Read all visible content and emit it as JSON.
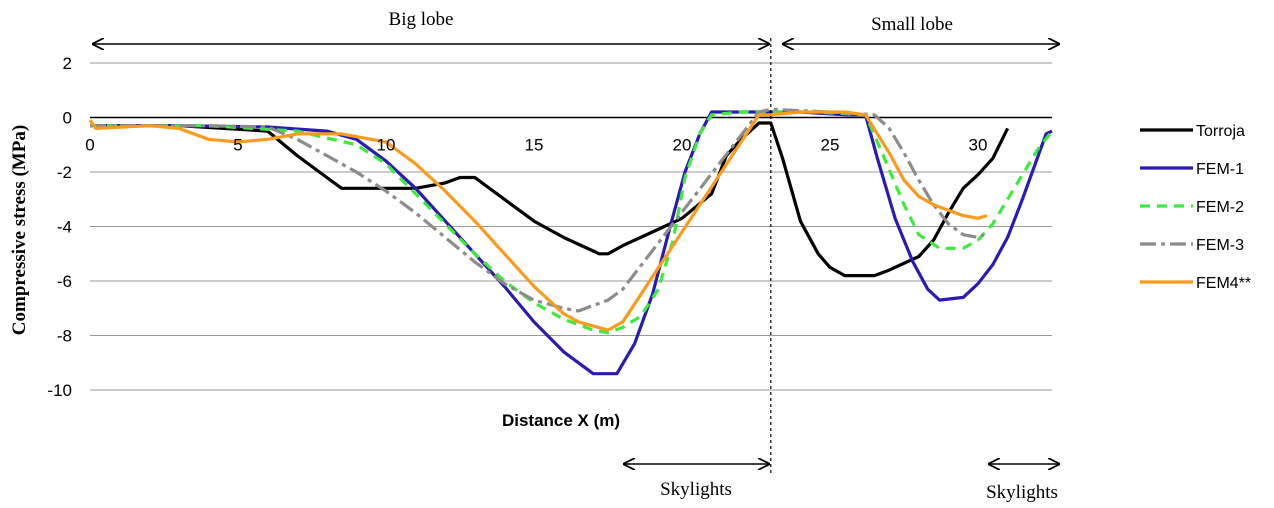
{
  "chart_data": {
    "type": "line",
    "xlabel": "Distance X (m)",
    "ylabel": "Compressive stress (MPa)",
    "xlim": [
      0,
      32.5
    ],
    "ylim": [
      -10,
      2
    ],
    "x_ticks": [
      0,
      5,
      10,
      15,
      20,
      25,
      30
    ],
    "y_ticks": [
      2,
      0,
      -2,
      -4,
      -6,
      -8,
      -10
    ],
    "grid": "horizontal",
    "legend_position": "right",
    "divider_x": 23,
    "annotations": {
      "big_lobe": "Big lobe",
      "small_lobe": "Small lobe",
      "skylights_1": "Skylights",
      "skylights_2": "Skylights"
    },
    "series": [
      {
        "name": "Torroja",
        "color": "#000000",
        "dash": "",
        "points": [
          [
            0,
            -0.3
          ],
          [
            3,
            -0.3
          ],
          [
            6,
            -0.5
          ],
          [
            7,
            -1.4
          ],
          [
            8,
            -2.2
          ],
          [
            8.5,
            -2.6
          ],
          [
            11,
            -2.6
          ],
          [
            12,
            -2.4
          ],
          [
            12.5,
            -2.2
          ],
          [
            13,
            -2.2
          ],
          [
            14,
            -3
          ],
          [
            15,
            -3.8
          ],
          [
            16,
            -4.4
          ],
          [
            17,
            -4.9
          ],
          [
            17.2,
            -5
          ],
          [
            17.5,
            -5
          ],
          [
            18,
            -4.7
          ],
          [
            19,
            -4.2
          ],
          [
            20,
            -3.7
          ],
          [
            21,
            -2.8
          ],
          [
            21.5,
            -1.4
          ],
          [
            22,
            -0.8
          ],
          [
            22.6,
            -0.2
          ],
          [
            23,
            -0.2
          ],
          [
            23.4,
            -1.5
          ],
          [
            24,
            -3.8
          ],
          [
            24.6,
            -5
          ],
          [
            25,
            -5.5
          ],
          [
            25.5,
            -5.8
          ],
          [
            26.5,
            -5.8
          ],
          [
            27,
            -5.6
          ],
          [
            28,
            -5.1
          ],
          [
            28.5,
            -4.5
          ],
          [
            29,
            -3.5
          ],
          [
            29.5,
            -2.6
          ],
          [
            30,
            -2.1
          ],
          [
            30.5,
            -1.5
          ],
          [
            31,
            -0.4
          ]
        ]
      },
      {
        "name": "FEM-1",
        "color": "#2b1ab4",
        "dash": "",
        "points": [
          [
            0,
            -0.3
          ],
          [
            3,
            -0.3
          ],
          [
            6,
            -0.35
          ],
          [
            8,
            -0.5
          ],
          [
            9,
            -0.8
          ],
          [
            10,
            -1.6
          ],
          [
            11,
            -2.6
          ],
          [
            12,
            -3.8
          ],
          [
            13,
            -5
          ],
          [
            14,
            -6.2
          ],
          [
            15,
            -7.5
          ],
          [
            16,
            -8.6
          ],
          [
            17,
            -9.4
          ],
          [
            17.8,
            -9.4
          ],
          [
            18.4,
            -8.3
          ],
          [
            19,
            -6.5
          ],
          [
            19.6,
            -4
          ],
          [
            20.1,
            -2
          ],
          [
            20.6,
            -0.6
          ],
          [
            21,
            0.2
          ],
          [
            23,
            0.2
          ],
          [
            24,
            0.2
          ],
          [
            25.5,
            0.1
          ],
          [
            26.2,
            0.1
          ],
          [
            26.6,
            -1.5
          ],
          [
            27.2,
            -3.7
          ],
          [
            27.8,
            -5.3
          ],
          [
            28.3,
            -6.3
          ],
          [
            28.7,
            -6.7
          ],
          [
            29.5,
            -6.6
          ],
          [
            30,
            -6.1
          ],
          [
            30.5,
            -5.4
          ],
          [
            31,
            -4.4
          ],
          [
            31.5,
            -3
          ],
          [
            32,
            -1.5
          ],
          [
            32.3,
            -0.6
          ],
          [
            32.5,
            -0.5
          ]
        ]
      },
      {
        "name": "FEM-2",
        "color": "#3ceb3c",
        "dash": "10,7",
        "points": [
          [
            0,
            -0.3
          ],
          [
            4,
            -0.3
          ],
          [
            7,
            -0.5
          ],
          [
            9,
            -1
          ],
          [
            10,
            -1.7
          ],
          [
            11,
            -2.8
          ],
          [
            12,
            -3.9
          ],
          [
            13,
            -5
          ],
          [
            14,
            -6
          ],
          [
            15,
            -6.8
          ],
          [
            16,
            -7.4
          ],
          [
            17,
            -7.8
          ],
          [
            17.5,
            -7.9
          ],
          [
            18,
            -7.7
          ],
          [
            18.6,
            -7.3
          ],
          [
            19.2,
            -6.3
          ],
          [
            19.7,
            -4.5
          ],
          [
            20.1,
            -2.2
          ],
          [
            20.6,
            -0.6
          ],
          [
            21,
            0.1
          ],
          [
            22,
            0.2
          ],
          [
            23,
            0.2
          ],
          [
            24.5,
            0.2
          ],
          [
            26.2,
            0.1
          ],
          [
            26.8,
            -1.4
          ],
          [
            27.5,
            -3.2
          ],
          [
            28,
            -4.3
          ],
          [
            28.7,
            -4.8
          ],
          [
            29.5,
            -4.8
          ],
          [
            30,
            -4.5
          ],
          [
            30.5,
            -3.9
          ],
          [
            31,
            -3
          ],
          [
            31.5,
            -2.1
          ],
          [
            32,
            -1.2
          ],
          [
            32.5,
            -0.5
          ]
        ]
      },
      {
        "name": "FEM-3",
        "color": "#8c8c8c",
        "dash": "16,5,4,5",
        "points": [
          [
            0,
            -0.3
          ],
          [
            4,
            -0.3
          ],
          [
            6,
            -0.35
          ],
          [
            7,
            -0.8
          ],
          [
            8,
            -1.4
          ],
          [
            9,
            -2
          ],
          [
            10,
            -2.7
          ],
          [
            11,
            -3.5
          ],
          [
            12,
            -4.4
          ],
          [
            13,
            -5.3
          ],
          [
            14,
            -6.1
          ],
          [
            15,
            -6.7
          ],
          [
            16,
            -7
          ],
          [
            16.5,
            -7.1
          ],
          [
            17,
            -6.9
          ],
          [
            17.5,
            -6.7
          ],
          [
            18,
            -6.3
          ],
          [
            22.6,
            0.2
          ],
          [
            23,
            0.3
          ],
          [
            25,
            0.2
          ],
          [
            26.5,
            0.1
          ],
          [
            27,
            -0.4
          ],
          [
            27.5,
            -1.3
          ],
          [
            28,
            -2.3
          ],
          [
            28.5,
            -3.2
          ],
          [
            29,
            -3.9
          ],
          [
            29.5,
            -4.3
          ],
          [
            30,
            -4.4
          ],
          [
            30.2,
            -4.3
          ]
        ]
      },
      {
        "name": "FEM4**",
        "color": "#fa9b1e",
        "dash": "",
        "points": [
          [
            0,
            -0.1
          ],
          [
            0.2,
            -0.4
          ],
          [
            2,
            -0.3
          ],
          [
            3,
            -0.4
          ],
          [
            4,
            -0.8
          ],
          [
            5,
            -0.9
          ],
          [
            6,
            -0.8
          ],
          [
            7,
            -0.6
          ],
          [
            8.5,
            -0.6
          ],
          [
            10,
            -0.9
          ],
          [
            11,
            -1.7
          ],
          [
            12,
            -2.7
          ],
          [
            13,
            -3.8
          ],
          [
            14,
            -5
          ],
          [
            15,
            -6.2
          ],
          [
            16,
            -7.2
          ],
          [
            16.5,
            -7.5
          ],
          [
            17.5,
            -7.8
          ],
          [
            18,
            -7.5
          ],
          [
            22.6,
            0.1
          ],
          [
            23,
            0.1
          ],
          [
            24,
            0.2
          ],
          [
            25.5,
            0.2
          ],
          [
            26.2,
            0.1
          ],
          [
            27,
            -1.3
          ],
          [
            27.5,
            -2.3
          ],
          [
            28,
            -2.9
          ],
          [
            28.5,
            -3.2
          ],
          [
            29,
            -3.4
          ],
          [
            29.5,
            -3.6
          ],
          [
            30,
            -3.7
          ],
          [
            30.3,
            -3.6
          ]
        ]
      }
    ]
  }
}
